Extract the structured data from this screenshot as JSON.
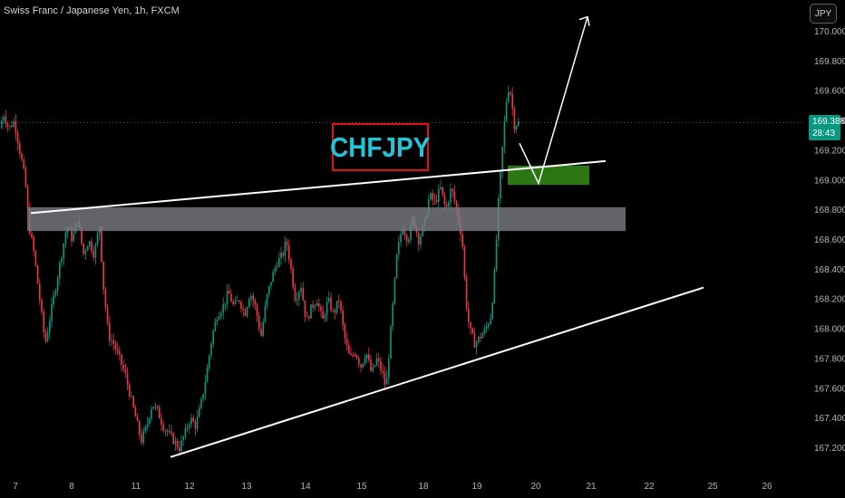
{
  "header": {
    "title": "Swiss Franc / Japanese Yen, 1h, FXCM"
  },
  "currency_button": "JPY",
  "current_price": {
    "value": "169.388",
    "countdown": "28:43",
    "color": "#089981"
  },
  "annotation_label": "CHFJPY",
  "colors": {
    "up": "#089981",
    "down": "#f23645",
    "zone_resistance": "#7a7d85",
    "zone_target": "#2e7d14",
    "label_border": "#e01010",
    "label_text": "#22c4d8"
  },
  "chart_data": {
    "type": "candlestick",
    "symbol": "CHFJPY",
    "timeframe": "1h",
    "ylim": [
      167.1,
      170.1
    ],
    "y_ticks": [
      "170.000",
      "169.800",
      "169.600",
      "169.400",
      "169.200",
      "169.000",
      "168.800",
      "168.600",
      "168.400",
      "168.200",
      "168.000",
      "167.800",
      "167.600",
      "167.400",
      "167.200"
    ],
    "x_ticks": [
      "7",
      "8",
      "11",
      "12",
      "13",
      "14",
      "15",
      "18",
      "19",
      "20",
      "21",
      "22",
      "25",
      "26"
    ],
    "current_price": 169.388,
    "price_path": [
      [
        0,
        169.3
      ],
      [
        6,
        169.45
      ],
      [
        12,
        169.35
      ],
      [
        18,
        169.4
      ],
      [
        24,
        169.2
      ],
      [
        30,
        169.0
      ],
      [
        34,
        168.7
      ],
      [
        40,
        168.5
      ],
      [
        46,
        168.2
      ],
      [
        52,
        167.9
      ],
      [
        58,
        168.1
      ],
      [
        64,
        168.3
      ],
      [
        70,
        168.5
      ],
      [
        76,
        168.7
      ],
      [
        82,
        168.6
      ],
      [
        88,
        168.75
      ],
      [
        94,
        168.5
      ],
      [
        100,
        168.6
      ],
      [
        106,
        168.5
      ],
      [
        112,
        168.7
      ],
      [
        116,
        168.3
      ],
      [
        122,
        167.95
      ],
      [
        128,
        167.9
      ],
      [
        134,
        167.8
      ],
      [
        140,
        167.7
      ],
      [
        146,
        167.55
      ],
      [
        152,
        167.4
      ],
      [
        158,
        167.25
      ],
      [
        164,
        167.35
      ],
      [
        170,
        167.5
      ],
      [
        176,
        167.45
      ],
      [
        182,
        167.35
      ],
      [
        188,
        167.3
      ],
      [
        194,
        167.25
      ],
      [
        200,
        167.2
      ],
      [
        206,
        167.3
      ],
      [
        212,
        167.4
      ],
      [
        218,
        167.35
      ],
      [
        224,
        167.5
      ],
      [
        230,
        167.7
      ],
      [
        236,
        167.95
      ],
      [
        242,
        168.1
      ],
      [
        248,
        168.15
      ],
      [
        254,
        168.25
      ],
      [
        260,
        168.15
      ],
      [
        266,
        168.2
      ],
      [
        272,
        168.1
      ],
      [
        278,
        168.25
      ],
      [
        284,
        168.15
      ],
      [
        290,
        167.95
      ],
      [
        296,
        168.2
      ],
      [
        302,
        168.35
      ],
      [
        308,
        168.45
      ],
      [
        314,
        168.5
      ],
      [
        318,
        168.6
      ],
      [
        322,
        168.45
      ],
      [
        328,
        168.2
      ],
      [
        334,
        168.3
      ],
      [
        340,
        168.05
      ],
      [
        346,
        168.15
      ],
      [
        352,
        168.2
      ],
      [
        358,
        168.05
      ],
      [
        364,
        168.2
      ],
      [
        370,
        168.1
      ],
      [
        376,
        168.2
      ],
      [
        382,
        167.95
      ],
      [
        388,
        167.8
      ],
      [
        394,
        167.85
      ],
      [
        400,
        167.75
      ],
      [
        406,
        167.85
      ],
      [
        412,
        167.7
      ],
      [
        418,
        167.8
      ],
      [
        424,
        167.7
      ],
      [
        428,
        167.6
      ],
      [
        432,
        167.9
      ],
      [
        436,
        168.2
      ],
      [
        440,
        168.5
      ],
      [
        446,
        168.7
      ],
      [
        452,
        168.6
      ],
      [
        458,
        168.75
      ],
      [
        464,
        168.6
      ],
      [
        470,
        168.7
      ],
      [
        476,
        168.9
      ],
      [
        482,
        168.85
      ],
      [
        488,
        168.95
      ],
      [
        494,
        168.8
      ],
      [
        500,
        168.95
      ],
      [
        506,
        168.8
      ],
      [
        512,
        168.6
      ],
      [
        516,
        168.2
      ],
      [
        520,
        168.0
      ],
      [
        526,
        167.9
      ],
      [
        532,
        167.95
      ],
      [
        538,
        168.0
      ],
      [
        544,
        168.1
      ],
      [
        548,
        168.4
      ],
      [
        552,
        168.85
      ],
      [
        555,
        169.1
      ],
      [
        558,
        169.35
      ],
      [
        561,
        169.55
      ],
      [
        564,
        169.65
      ],
      [
        567,
        169.5
      ],
      [
        570,
        169.35
      ],
      [
        572,
        169.388
      ]
    ],
    "lines": [
      {
        "name": "upper-trendline",
        "from": [
          34,
          168.78
        ],
        "to": [
          668,
          169.13
        ]
      },
      {
        "name": "lower-trendline",
        "from": [
          188,
          167.14
        ],
        "to": [
          776,
          168.28
        ]
      }
    ],
    "zones": [
      {
        "name": "resistance-zone",
        "x_from": 30,
        "x_to": 690,
        "y_from": 168.66,
        "y_to": 168.82
      },
      {
        "name": "target-zone",
        "x_from": 560,
        "x_to": 650,
        "y_from": 168.97,
        "y_to": 169.1
      }
    ],
    "projection": [
      [
        573,
        169.25
      ],
      [
        594,
        168.98
      ],
      [
        648,
        170.1
      ]
    ]
  }
}
